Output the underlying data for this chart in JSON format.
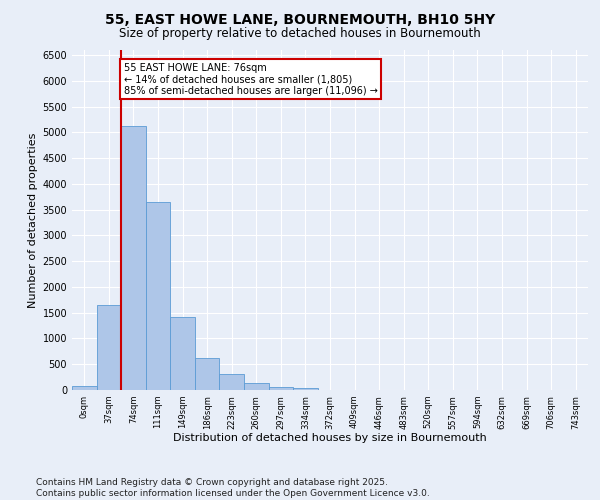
{
  "title_line1": "55, EAST HOWE LANE, BOURNEMOUTH, BH10 5HY",
  "title_line2": "Size of property relative to detached houses in Bournemouth",
  "xlabel": "Distribution of detached houses by size in Bournemouth",
  "ylabel": "Number of detached properties",
  "bar_color": "#aec6e8",
  "bar_edge_color": "#5b9bd5",
  "vline_color": "#cc0000",
  "vline_x_index": 2,
  "annotation_text": "55 EAST HOWE LANE: 76sqm\n← 14% of detached houses are smaller (1,805)\n85% of semi-detached houses are larger (11,096) →",
  "annotation_box_color": "#cc0000",
  "background_color": "#e8eef8",
  "grid_color": "#ffffff",
  "categories": [
    "0sqm",
    "37sqm",
    "74sqm",
    "111sqm",
    "149sqm",
    "186sqm",
    "223sqm",
    "260sqm",
    "297sqm",
    "334sqm",
    "372sqm",
    "409sqm",
    "446sqm",
    "483sqm",
    "520sqm",
    "557sqm",
    "594sqm",
    "632sqm",
    "669sqm",
    "706sqm",
    "743sqm"
  ],
  "values": [
    80,
    1650,
    5120,
    3640,
    1420,
    620,
    310,
    130,
    65,
    30,
    0,
    0,
    0,
    0,
    0,
    0,
    0,
    0,
    0,
    0,
    0
  ],
  "ylim": [
    0,
    6600
  ],
  "yticks": [
    0,
    500,
    1000,
    1500,
    2000,
    2500,
    3000,
    3500,
    4000,
    4500,
    5000,
    5500,
    6000,
    6500
  ],
  "footer": "Contains HM Land Registry data © Crown copyright and database right 2025.\nContains public sector information licensed under the Open Government Licence v3.0.",
  "footer_fontsize": 6.5,
  "title_fontsize1": 10,
  "title_fontsize2": 8.5
}
